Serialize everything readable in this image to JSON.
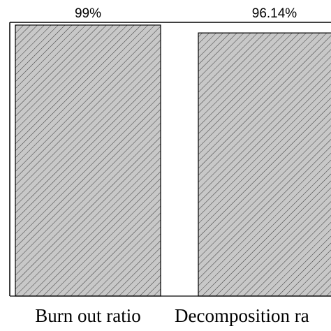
{
  "chart_data": {
    "type": "bar",
    "categories": [
      "Burn out ratio",
      "Decomposition ra"
    ],
    "values": [
      99,
      96.14
    ],
    "value_labels": [
      "99%",
      "96.14%"
    ],
    "color": "#c8c8c8",
    "ylim": [
      0,
      100
    ]
  }
}
